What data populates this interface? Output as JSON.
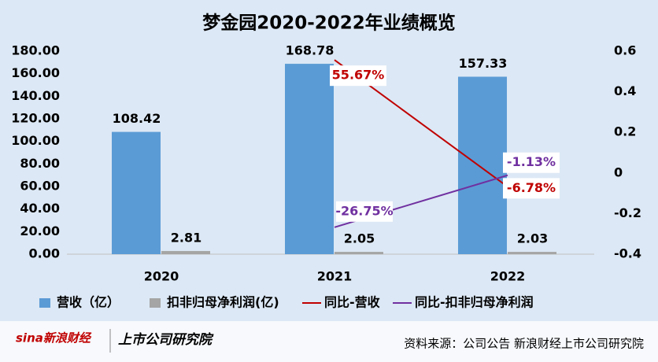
{
  "chart_data": {
    "type": "bar",
    "title": "梦金园2020-2022年业绩概览",
    "categories": [
      "2020",
      "2021",
      "2022"
    ],
    "series": [
      {
        "name": "营收（亿）",
        "color": "#5b9bd5",
        "values": [
          108.42,
          168.78,
          157.33
        ]
      },
      {
        "name": "扣非归母净利润(亿)",
        "color": "#a5a5a5",
        "values": [
          2.81,
          2.05,
          2.03
        ]
      },
      {
        "name": "同比-营收",
        "type": "line",
        "axis": "y2",
        "color": "#c00000",
        "values": [
          null,
          0.5567,
          -0.0678
        ],
        "value_labels": [
          null,
          "55.67%",
          "-6.78%"
        ]
      },
      {
        "name": "同比-扣非归母净利润",
        "type": "line",
        "axis": "y2",
        "color": "#7030a0",
        "values": [
          null,
          -0.2675,
          -0.0113
        ],
        "value_labels": [
          null,
          "-26.75%",
          "-1.13%"
        ]
      }
    ],
    "ylim": [
      0,
      180
    ],
    "yticks": [
      {
        "value": 0,
        "label": "0.00"
      },
      {
        "value": 20,
        "label": "20.00"
      },
      {
        "value": 40,
        "label": "40.00"
      },
      {
        "value": 60,
        "label": "60.00"
      },
      {
        "value": 80,
        "label": "80.00"
      },
      {
        "value": 100,
        "label": "100.00"
      },
      {
        "value": 120,
        "label": "120.00"
      },
      {
        "value": 140,
        "label": "140.00"
      },
      {
        "value": 160,
        "label": "160.00"
      },
      {
        "value": 180,
        "label": "180.00"
      }
    ],
    "y2lim": [
      -0.4,
      0.6
    ],
    "y2ticks": [
      -0.4,
      -0.2,
      0,
      0.2,
      0.4,
      0.6
    ],
    "legend": "bottom",
    "source": "资料来源：公司公告 新浪财经上市公司研究院"
  },
  "footer": {
    "brand": [
      "sina新浪财经",
      "上市公司研究院"
    ]
  }
}
